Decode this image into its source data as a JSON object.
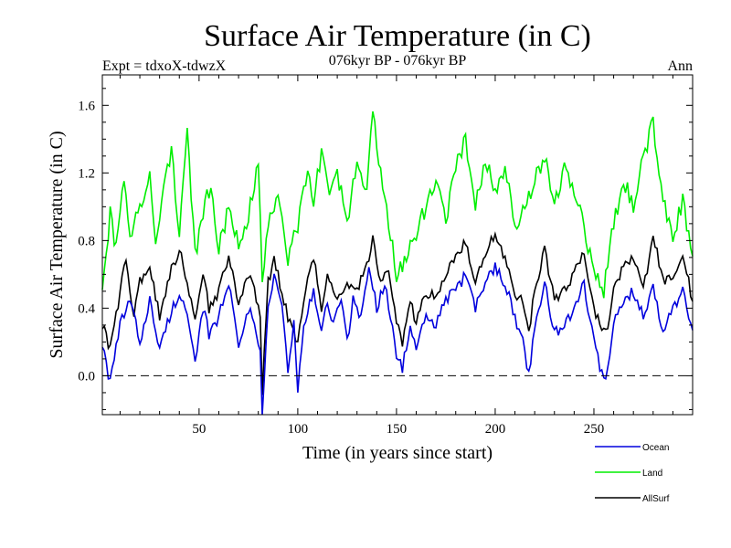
{
  "chart_data": {
    "type": "line",
    "title": "Surface Air Temperature (in C)",
    "subtitle": "076kyr BP - 076kyr BP",
    "left_label": "Expt = tdxoX-tdwzX",
    "right_label": "Ann",
    "xlabel": "Time (in years since start)",
    "ylabel": "Surface Air Temperature (in C)",
    "xlim": [
      1,
      300
    ],
    "ylim": [
      -0.23,
      1.78
    ],
    "x_ticks": [
      50,
      100,
      150,
      200,
      250
    ],
    "y_ticks": [
      0.0,
      0.4,
      0.8,
      1.2,
      1.6
    ],
    "y_tick_labels": [
      "0.0",
      "0.4",
      "0.8",
      "1.2",
      "1.6"
    ],
    "zero_line": true,
    "legend_position": "bottom-right",
    "series": [
      {
        "name": "Ocean",
        "color": "#0000dd",
        "keypoints": [
          [
            1,
            0.2
          ],
          [
            5,
            -0.05
          ],
          [
            10,
            0.3
          ],
          [
            15,
            0.45
          ],
          [
            20,
            0.2
          ],
          [
            25,
            0.45
          ],
          [
            30,
            0.15
          ],
          [
            35,
            0.35
          ],
          [
            40,
            0.5
          ],
          [
            45,
            0.3
          ],
          [
            48,
            0.05
          ],
          [
            52,
            0.4
          ],
          [
            55,
            0.25
          ],
          [
            60,
            0.35
          ],
          [
            65,
            0.55
          ],
          [
            70,
            0.2
          ],
          [
            75,
            0.4
          ],
          [
            78,
            0.3
          ],
          [
            81,
            0.15
          ],
          [
            82,
            -0.25
          ],
          [
            85,
            0.4
          ],
          [
            88,
            0.6
          ],
          [
            92,
            0.4
          ],
          [
            95,
            0.05
          ],
          [
            98,
            0.3
          ],
          [
            100,
            -0.1
          ],
          [
            103,
            0.3
          ],
          [
            108,
            0.5
          ],
          [
            112,
            0.25
          ],
          [
            115,
            0.45
          ],
          [
            118,
            0.3
          ],
          [
            122,
            0.45
          ],
          [
            125,
            0.2
          ],
          [
            128,
            0.45
          ],
          [
            132,
            0.35
          ],
          [
            136,
            0.65
          ],
          [
            140,
            0.4
          ],
          [
            144,
            0.55
          ],
          [
            148,
            0.3
          ],
          [
            150,
            0.1
          ],
          [
            153,
            0.05
          ],
          [
            157,
            0.3
          ],
          [
            160,
            0.15
          ],
          [
            165,
            0.35
          ],
          [
            170,
            0.3
          ],
          [
            175,
            0.45
          ],
          [
            180,
            0.5
          ],
          [
            185,
            0.6
          ],
          [
            190,
            0.4
          ],
          [
            195,
            0.55
          ],
          [
            200,
            0.65
          ],
          [
            205,
            0.55
          ],
          [
            210,
            0.35
          ],
          [
            214,
            0.2
          ],
          [
            217,
            0.0
          ],
          [
            220,
            0.3
          ],
          [
            225,
            0.55
          ],
          [
            230,
            0.25
          ],
          [
            235,
            0.3
          ],
          [
            240,
            0.4
          ],
          [
            245,
            0.55
          ],
          [
            250,
            0.2
          ],
          [
            253,
            0.05
          ],
          [
            256,
            -0.05
          ],
          [
            260,
            0.3
          ],
          [
            265,
            0.45
          ],
          [
            270,
            0.5
          ],
          [
            275,
            0.35
          ],
          [
            280,
            0.55
          ],
          [
            285,
            0.25
          ],
          [
            290,
            0.4
          ],
          [
            295,
            0.5
          ],
          [
            300,
            0.25
          ]
        ]
      },
      {
        "name": "Land",
        "color": "#00ee00",
        "keypoints": [
          [
            1,
            0.55
          ],
          [
            5,
            0.95
          ],
          [
            8,
            0.75
          ],
          [
            12,
            1.15
          ],
          [
            15,
            0.8
          ],
          [
            20,
            1.0
          ],
          [
            25,
            1.2
          ],
          [
            28,
            0.75
          ],
          [
            32,
            1.1
          ],
          [
            36,
            1.35
          ],
          [
            40,
            0.85
          ],
          [
            44,
            1.45
          ],
          [
            48,
            0.7
          ],
          [
            52,
            0.95
          ],
          [
            56,
            1.15
          ],
          [
            60,
            0.75
          ],
          [
            65,
            1.0
          ],
          [
            70,
            0.8
          ],
          [
            75,
            0.95
          ],
          [
            80,
            1.25
          ],
          [
            82,
            0.55
          ],
          [
            85,
            0.9
          ],
          [
            90,
            1.1
          ],
          [
            95,
            0.7
          ],
          [
            100,
            0.9
          ],
          [
            105,
            1.2
          ],
          [
            108,
            1.0
          ],
          [
            112,
            1.35
          ],
          [
            116,
            1.1
          ],
          [
            120,
            1.2
          ],
          [
            125,
            0.9
          ],
          [
            130,
            1.3
          ],
          [
            135,
            1.1
          ],
          [
            138,
            1.55
          ],
          [
            142,
            1.2
          ],
          [
            145,
            1.0
          ],
          [
            150,
            0.6
          ],
          [
            155,
            0.7
          ],
          [
            160,
            0.85
          ],
          [
            165,
            1.0
          ],
          [
            170,
            1.15
          ],
          [
            175,
            0.9
          ],
          [
            180,
            1.25
          ],
          [
            185,
            1.4
          ],
          [
            190,
            1.0
          ],
          [
            195,
            1.3
          ],
          [
            200,
            1.1
          ],
          [
            205,
            1.25
          ],
          [
            210,
            0.9
          ],
          [
            215,
            1.0
          ],
          [
            220,
            1.15
          ],
          [
            225,
            1.3
          ],
          [
            230,
            1.0
          ],
          [
            235,
            1.25
          ],
          [
            240,
            1.1
          ],
          [
            245,
            0.9
          ],
          [
            250,
            0.6
          ],
          [
            255,
            0.5
          ],
          [
            260,
            0.9
          ],
          [
            265,
            1.15
          ],
          [
            270,
            1.0
          ],
          [
            275,
            1.3
          ],
          [
            280,
            1.5
          ],
          [
            285,
            1.05
          ],
          [
            290,
            0.8
          ],
          [
            295,
            1.05
          ],
          [
            300,
            0.7
          ]
        ]
      },
      {
        "name": "AllSurf",
        "color": "#000000",
        "keypoints": [
          [
            1,
            0.3
          ],
          [
            5,
            0.15
          ],
          [
            10,
            0.5
          ],
          [
            13,
            0.7
          ],
          [
            17,
            0.35
          ],
          [
            20,
            0.55
          ],
          [
            25,
            0.65
          ],
          [
            30,
            0.35
          ],
          [
            35,
            0.6
          ],
          [
            40,
            0.75
          ],
          [
            45,
            0.5
          ],
          [
            48,
            0.3
          ],
          [
            52,
            0.6
          ],
          [
            55,
            0.4
          ],
          [
            60,
            0.5
          ],
          [
            65,
            0.7
          ],
          [
            70,
            0.45
          ],
          [
            75,
            0.6
          ],
          [
            78,
            0.5
          ],
          [
            81,
            0.35
          ],
          [
            82,
            -0.1
          ],
          [
            85,
            0.55
          ],
          [
            88,
            0.7
          ],
          [
            92,
            0.5
          ],
          [
            96,
            0.3
          ],
          [
            100,
            0.2
          ],
          [
            103,
            0.45
          ],
          [
            108,
            0.7
          ],
          [
            112,
            0.4
          ],
          [
            115,
            0.6
          ],
          [
            120,
            0.45
          ],
          [
            125,
            0.55
          ],
          [
            130,
            0.5
          ],
          [
            135,
            0.65
          ],
          [
            138,
            0.8
          ],
          [
            142,
            0.55
          ],
          [
            146,
            0.65
          ],
          [
            150,
            0.3
          ],
          [
            153,
            0.2
          ],
          [
            157,
            0.45
          ],
          [
            160,
            0.3
          ],
          [
            165,
            0.5
          ],
          [
            170,
            0.45
          ],
          [
            175,
            0.6
          ],
          [
            180,
            0.7
          ],
          [
            185,
            0.8
          ],
          [
            190,
            0.55
          ],
          [
            195,
            0.7
          ],
          [
            200,
            0.85
          ],
          [
            205,
            0.7
          ],
          [
            210,
            0.5
          ],
          [
            215,
            0.4
          ],
          [
            217,
            0.25
          ],
          [
            220,
            0.5
          ],
          [
            225,
            0.75
          ],
          [
            230,
            0.45
          ],
          [
            235,
            0.5
          ],
          [
            240,
            0.6
          ],
          [
            245,
            0.75
          ],
          [
            250,
            0.4
          ],
          [
            253,
            0.3
          ],
          [
            256,
            0.25
          ],
          [
            260,
            0.5
          ],
          [
            265,
            0.65
          ],
          [
            270,
            0.7
          ],
          [
            275,
            0.5
          ],
          [
            280,
            0.85
          ],
          [
            285,
            0.55
          ],
          [
            290,
            0.6
          ],
          [
            295,
            0.7
          ],
          [
            300,
            0.45
          ]
        ]
      }
    ]
  }
}
